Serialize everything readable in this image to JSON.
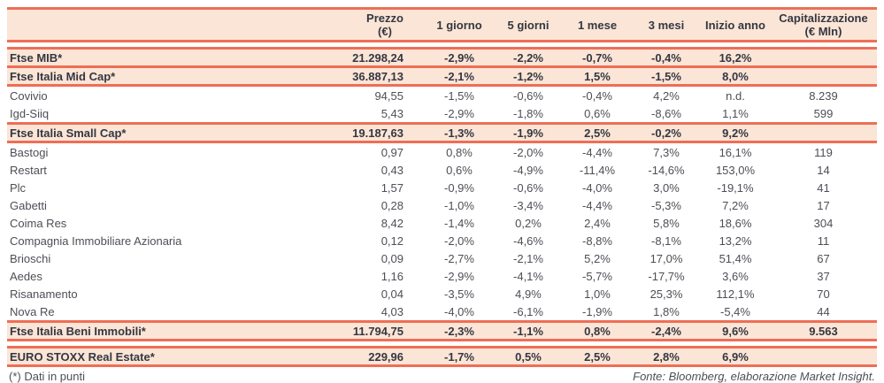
{
  "colors": {
    "accent": "#EE6E55",
    "band": "#FBE5D6",
    "text": "#4D4F56",
    "text_strong": "#343741"
  },
  "chart_data": {
    "type": "table",
    "column_headers": [
      [
        "Prezzo",
        "(€)"
      ],
      [
        "1 giorno"
      ],
      [
        "5 giorni"
      ],
      [
        "1 mese"
      ],
      [
        "3 mesi"
      ],
      [
        "Inizio anno"
      ],
      [
        "Capitalizzazione",
        "(€ Mln)"
      ]
    ],
    "rows": [
      {
        "type": "index",
        "gap_before": true,
        "name": "Ftse MIB*",
        "values": [
          "21.298,24",
          "-2,9%",
          "-2,2%",
          "-0,7%",
          "-0,4%",
          "16,2%",
          ""
        ]
      },
      {
        "type": "index",
        "gap_before": false,
        "name": "Ftse Italia Mid Cap*",
        "values": [
          "36.887,13",
          "-2,1%",
          "-1,2%",
          "1,5%",
          "-1,5%",
          "8,0%",
          ""
        ]
      },
      {
        "type": "stock",
        "gap_before": false,
        "name": "Covivio",
        "values": [
          "94,55",
          "-1,5%",
          "-0,6%",
          "-0,4%",
          "4,2%",
          "n.d.",
          "8.239"
        ]
      },
      {
        "type": "stock",
        "gap_before": false,
        "name": "Igd-Siiq",
        "values": [
          "5,43",
          "-2,9%",
          "-1,8%",
          "0,6%",
          "-8,6%",
          "1,1%",
          "599"
        ]
      },
      {
        "type": "index",
        "gap_before": false,
        "name": "Ftse Italia Small Cap*",
        "values": [
          "19.187,63",
          "-1,3%",
          "-1,9%",
          "2,5%",
          "-0,2%",
          "9,2%",
          ""
        ]
      },
      {
        "type": "stock",
        "gap_before": false,
        "name": "Bastogi",
        "values": [
          "0,97",
          "0,8%",
          "-2,0%",
          "-4,4%",
          "7,3%",
          "16,1%",
          "119"
        ]
      },
      {
        "type": "stock",
        "gap_before": false,
        "name": "Restart",
        "values": [
          "0,43",
          "0,6%",
          "-4,9%",
          "-11,4%",
          "-14,6%",
          "153,0%",
          "14"
        ]
      },
      {
        "type": "stock",
        "gap_before": false,
        "name": "Plc",
        "values": [
          "1,57",
          "-0,9%",
          "-0,6%",
          "-4,0%",
          "3,0%",
          "-19,1%",
          "41"
        ]
      },
      {
        "type": "stock",
        "gap_before": false,
        "name": "Gabetti",
        "values": [
          "0,28",
          "-1,0%",
          "-3,4%",
          "-4,4%",
          "-5,3%",
          "7,2%",
          "17"
        ]
      },
      {
        "type": "stock",
        "gap_before": false,
        "name": "Coima Res",
        "values": [
          "8,42",
          "-1,4%",
          "0,2%",
          "2,4%",
          "5,8%",
          "18,6%",
          "304"
        ]
      },
      {
        "type": "stock",
        "gap_before": false,
        "name": "Compagnia Immobiliare Azionaria",
        "values": [
          "0,12",
          "-2,0%",
          "-4,6%",
          "-8,8%",
          "-8,1%",
          "13,2%",
          "11"
        ]
      },
      {
        "type": "stock",
        "gap_before": false,
        "name": "Brioschi",
        "values": [
          "0,09",
          "-2,7%",
          "-2,1%",
          "5,2%",
          "17,0%",
          "51,4%",
          "67"
        ]
      },
      {
        "type": "stock",
        "gap_before": false,
        "name": "Aedes",
        "values": [
          "1,16",
          "-2,9%",
          "-4,1%",
          "-5,7%",
          "-17,7%",
          "3,6%",
          "37"
        ]
      },
      {
        "type": "stock",
        "gap_before": false,
        "name": "Risanamento",
        "values": [
          "0,04",
          "-3,5%",
          "4,9%",
          "1,0%",
          "25,3%",
          "112,1%",
          "70"
        ]
      },
      {
        "type": "stock",
        "gap_before": false,
        "name": "Nova Re",
        "values": [
          "4,03",
          "-4,0%",
          "-6,1%",
          "-1,9%",
          "1,8%",
          "-5,4%",
          "44"
        ]
      },
      {
        "type": "index",
        "gap_before": false,
        "name": "Ftse Italia Beni Immobili*",
        "values": [
          "11.794,75",
          "-2,3%",
          "-1,1%",
          "0,8%",
          "-2,4%",
          "9,6%",
          "9.563"
        ]
      },
      {
        "type": "index",
        "gap_before": true,
        "name": "EURO STOXX Real Estate*",
        "values": [
          "229,96",
          "-1,7%",
          "0,5%",
          "2,5%",
          "2,8%",
          "6,9%",
          ""
        ]
      }
    ]
  },
  "footer": {
    "left": "(*) Dati in punti",
    "right": "Fonte: Bloomberg, elaborazione Market Insight."
  }
}
